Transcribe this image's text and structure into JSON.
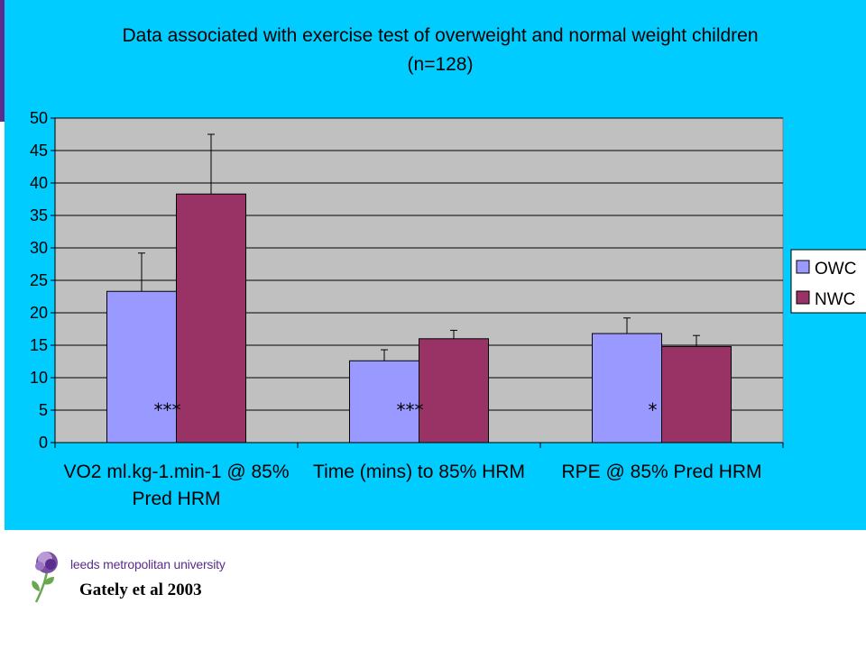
{
  "chart_data": {
    "type": "bar",
    "title": "Data associated with exercise test of overweight and normal weight children",
    "subtitle": "(n=128)",
    "categories": [
      [
        "VO2 ml.kg-1.min-1 @ 85%",
        "Pred HRM"
      ],
      [
        "Time (mins) to 85% HRM"
      ],
      [
        "RPE @ 85% Pred HRM"
      ]
    ],
    "series": [
      {
        "name": "OWC",
        "color": "#9999ff",
        "values": [
          23.3,
          12.6,
          16.8
        ],
        "errors": [
          5.9,
          1.7,
          2.4
        ]
      },
      {
        "name": "NWC",
        "color": "#993366",
        "values": [
          38.3,
          16.0,
          14.8
        ],
        "errors": [
          9.2,
          1.3,
          1.7
        ]
      }
    ],
    "significance": [
      "***",
      "***",
      "*"
    ],
    "ylim": [
      0,
      50
    ],
    "yticks": [
      "0",
      "5",
      "10",
      "15",
      "20",
      "25",
      "30",
      "35",
      "40",
      "45",
      "50"
    ],
    "ytick_step": 5,
    "grid": true,
    "plot_background": "#c0c0c0",
    "slide_background": "#00ccff",
    "legend_position": "right"
  },
  "footer": {
    "logo_text": "leeds metropolitan university",
    "citation": "Gately et al 2003"
  }
}
